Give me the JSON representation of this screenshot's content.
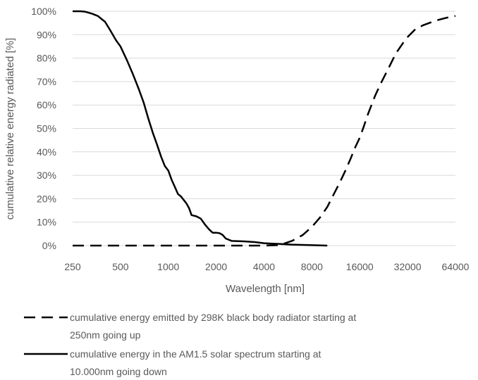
{
  "chart_data": {
    "type": "line",
    "xlabel": "Wavelength [nm]",
    "ylabel": "cumulative relative energy radiated [%]",
    "x_scale": "log2",
    "xlim": [
      250,
      64000
    ],
    "ylim": [
      0,
      100
    ],
    "x_ticks": [
      250,
      500,
      1000,
      2000,
      4000,
      8000,
      16000,
      32000,
      64000
    ],
    "x_tick_labels": [
      "250",
      "500",
      "1000",
      "2000",
      "4000",
      "8000",
      "16000",
      "32000",
      "64000"
    ],
    "y_ticks": [
      0,
      10,
      20,
      30,
      40,
      50,
      60,
      70,
      80,
      90,
      100
    ],
    "y_tick_labels": [
      "0%",
      "10%",
      "20%",
      "30%",
      "40%",
      "50%",
      "60%",
      "70%",
      "80%",
      "90%",
      "100%"
    ],
    "grid": "horizontal",
    "legend_position": "bottom",
    "series": [
      {
        "name": "cumulative energy emitted by 298K black body radiator starting at 250nm going up",
        "style": "dashed",
        "color": "#000000",
        "points": [
          [
            250,
            0
          ],
          [
            500,
            0
          ],
          [
            1000,
            0
          ],
          [
            2000,
            0
          ],
          [
            4000,
            0
          ],
          [
            5000,
            0.2
          ],
          [
            6000,
            2
          ],
          [
            7000,
            4.5
          ],
          [
            8000,
            8
          ],
          [
            9000,
            12
          ],
          [
            10000,
            16.5
          ],
          [
            11000,
            22
          ],
          [
            12000,
            27
          ],
          [
            13000,
            32
          ],
          [
            14000,
            37
          ],
          [
            15000,
            42
          ],
          [
            16000,
            46
          ],
          [
            17000,
            51
          ],
          [
            18000,
            56
          ],
          [
            20000,
            64
          ],
          [
            22000,
            70
          ],
          [
            24000,
            75
          ],
          [
            27000,
            82
          ],
          [
            30000,
            86.5
          ],
          [
            32000,
            89
          ],
          [
            36000,
            92.5
          ],
          [
            40000,
            94
          ],
          [
            48000,
            96
          ],
          [
            56000,
            97.2
          ],
          [
            64000,
            98
          ]
        ]
      },
      {
        "name": "cumulative energy in the AM1.5 solar spectrum starting at 10.000nm going down",
        "style": "solid",
        "color": "#000000",
        "points": [
          [
            250,
            100
          ],
          [
            280,
            100
          ],
          [
            300,
            99.8
          ],
          [
            330,
            99
          ],
          [
            360,
            98
          ],
          [
            400,
            95.5
          ],
          [
            430,
            92
          ],
          [
            470,
            87.5
          ],
          [
            500,
            85
          ],
          [
            550,
            79
          ],
          [
            600,
            73
          ],
          [
            650,
            67
          ],
          [
            700,
            61
          ],
          [
            750,
            54
          ],
          [
            800,
            48
          ],
          [
            850,
            43
          ],
          [
            900,
            38
          ],
          [
            950,
            34
          ],
          [
            1000,
            32
          ],
          [
            1050,
            28
          ],
          [
            1100,
            25
          ],
          [
            1150,
            22
          ],
          [
            1200,
            21
          ],
          [
            1300,
            18
          ],
          [
            1350,
            16
          ],
          [
            1400,
            13
          ],
          [
            1500,
            12.5
          ],
          [
            1600,
            11.5
          ],
          [
            1700,
            9
          ],
          [
            1800,
            7
          ],
          [
            1900,
            5.5
          ],
          [
            2000,
            5.5
          ],
          [
            2100,
            5.3
          ],
          [
            2200,
            4.5
          ],
          [
            2300,
            3
          ],
          [
            2500,
            2
          ],
          [
            3000,
            1.8
          ],
          [
            3500,
            1.5
          ],
          [
            4000,
            1
          ],
          [
            5000,
            0.7
          ],
          [
            6000,
            0.4
          ],
          [
            8000,
            0.2
          ],
          [
            10000,
            0
          ]
        ]
      }
    ]
  }
}
